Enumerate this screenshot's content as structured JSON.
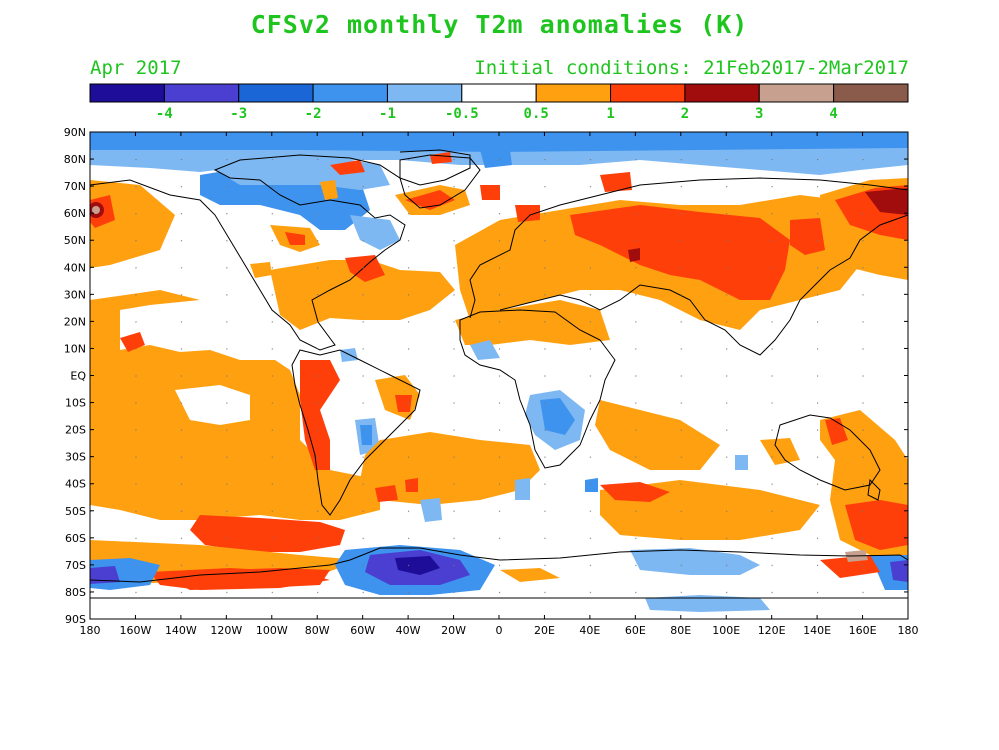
{
  "title": "CFSv2 monthly T2m anomalies (K)",
  "valid_month": "Apr 2017",
  "initial_conditions": "Initial conditions: 21Feb2017-2Mar2017",
  "colorbar": {
    "colors": [
      "#1e0d99",
      "#4a3fd1",
      "#1a66d6",
      "#3d93ee",
      "#7eb8f2",
      "#ffffff",
      "#ffa011",
      "#ff3f0a",
      "#a10c0c",
      "#c8a090",
      "#8a5a4a"
    ],
    "labels": [
      "-4",
      "-3",
      "-2",
      "-1",
      "-0.5",
      "0.5",
      "1",
      "2",
      "3",
      "4"
    ]
  },
  "lat_labels": [
    "90N",
    "80N",
    "70N",
    "60N",
    "50N",
    "40N",
    "30N",
    "20N",
    "10N",
    "EQ",
    "10S",
    "20S",
    "30S",
    "40S",
    "50S",
    "60S",
    "70S",
    "80S",
    "90S"
  ],
  "lon_labels": [
    "180",
    "160W",
    "140W",
    "120W",
    "100W",
    "80W",
    "60W",
    "40W",
    "20W",
    "0",
    "20E",
    "40E",
    "60E",
    "80E",
    "100E",
    "120E",
    "140E",
    "160E",
    "180"
  ],
  "anomaly_regions": [
    {
      "name": "arctic-north-cold",
      "level": "-1"
    },
    {
      "name": "northeast-canada-cold",
      "level": "-1"
    },
    {
      "name": "greenland-warm",
      "level": "2"
    },
    {
      "name": "east-pacific-warm",
      "level": "0.5"
    },
    {
      "name": "south-pacific-warm",
      "level": "0.5"
    },
    {
      "name": "southern-ocean-band-warm",
      "level": "2"
    },
    {
      "name": "antarctic-weddell-cold",
      "level": "-3"
    },
    {
      "name": "antarctic-ross-cold",
      "level": "-2"
    },
    {
      "name": "eurasia-warm",
      "level": "2"
    },
    {
      "name": "east-siberia-warm",
      "level": "3"
    },
    {
      "name": "central-africa-cool",
      "level": "-0.5"
    },
    {
      "name": "south-indian-ocean-warm",
      "level": "0.5"
    },
    {
      "name": "north-atlantic-warm",
      "level": "0.5"
    },
    {
      "name": "brazil-warm",
      "level": "1"
    }
  ]
}
